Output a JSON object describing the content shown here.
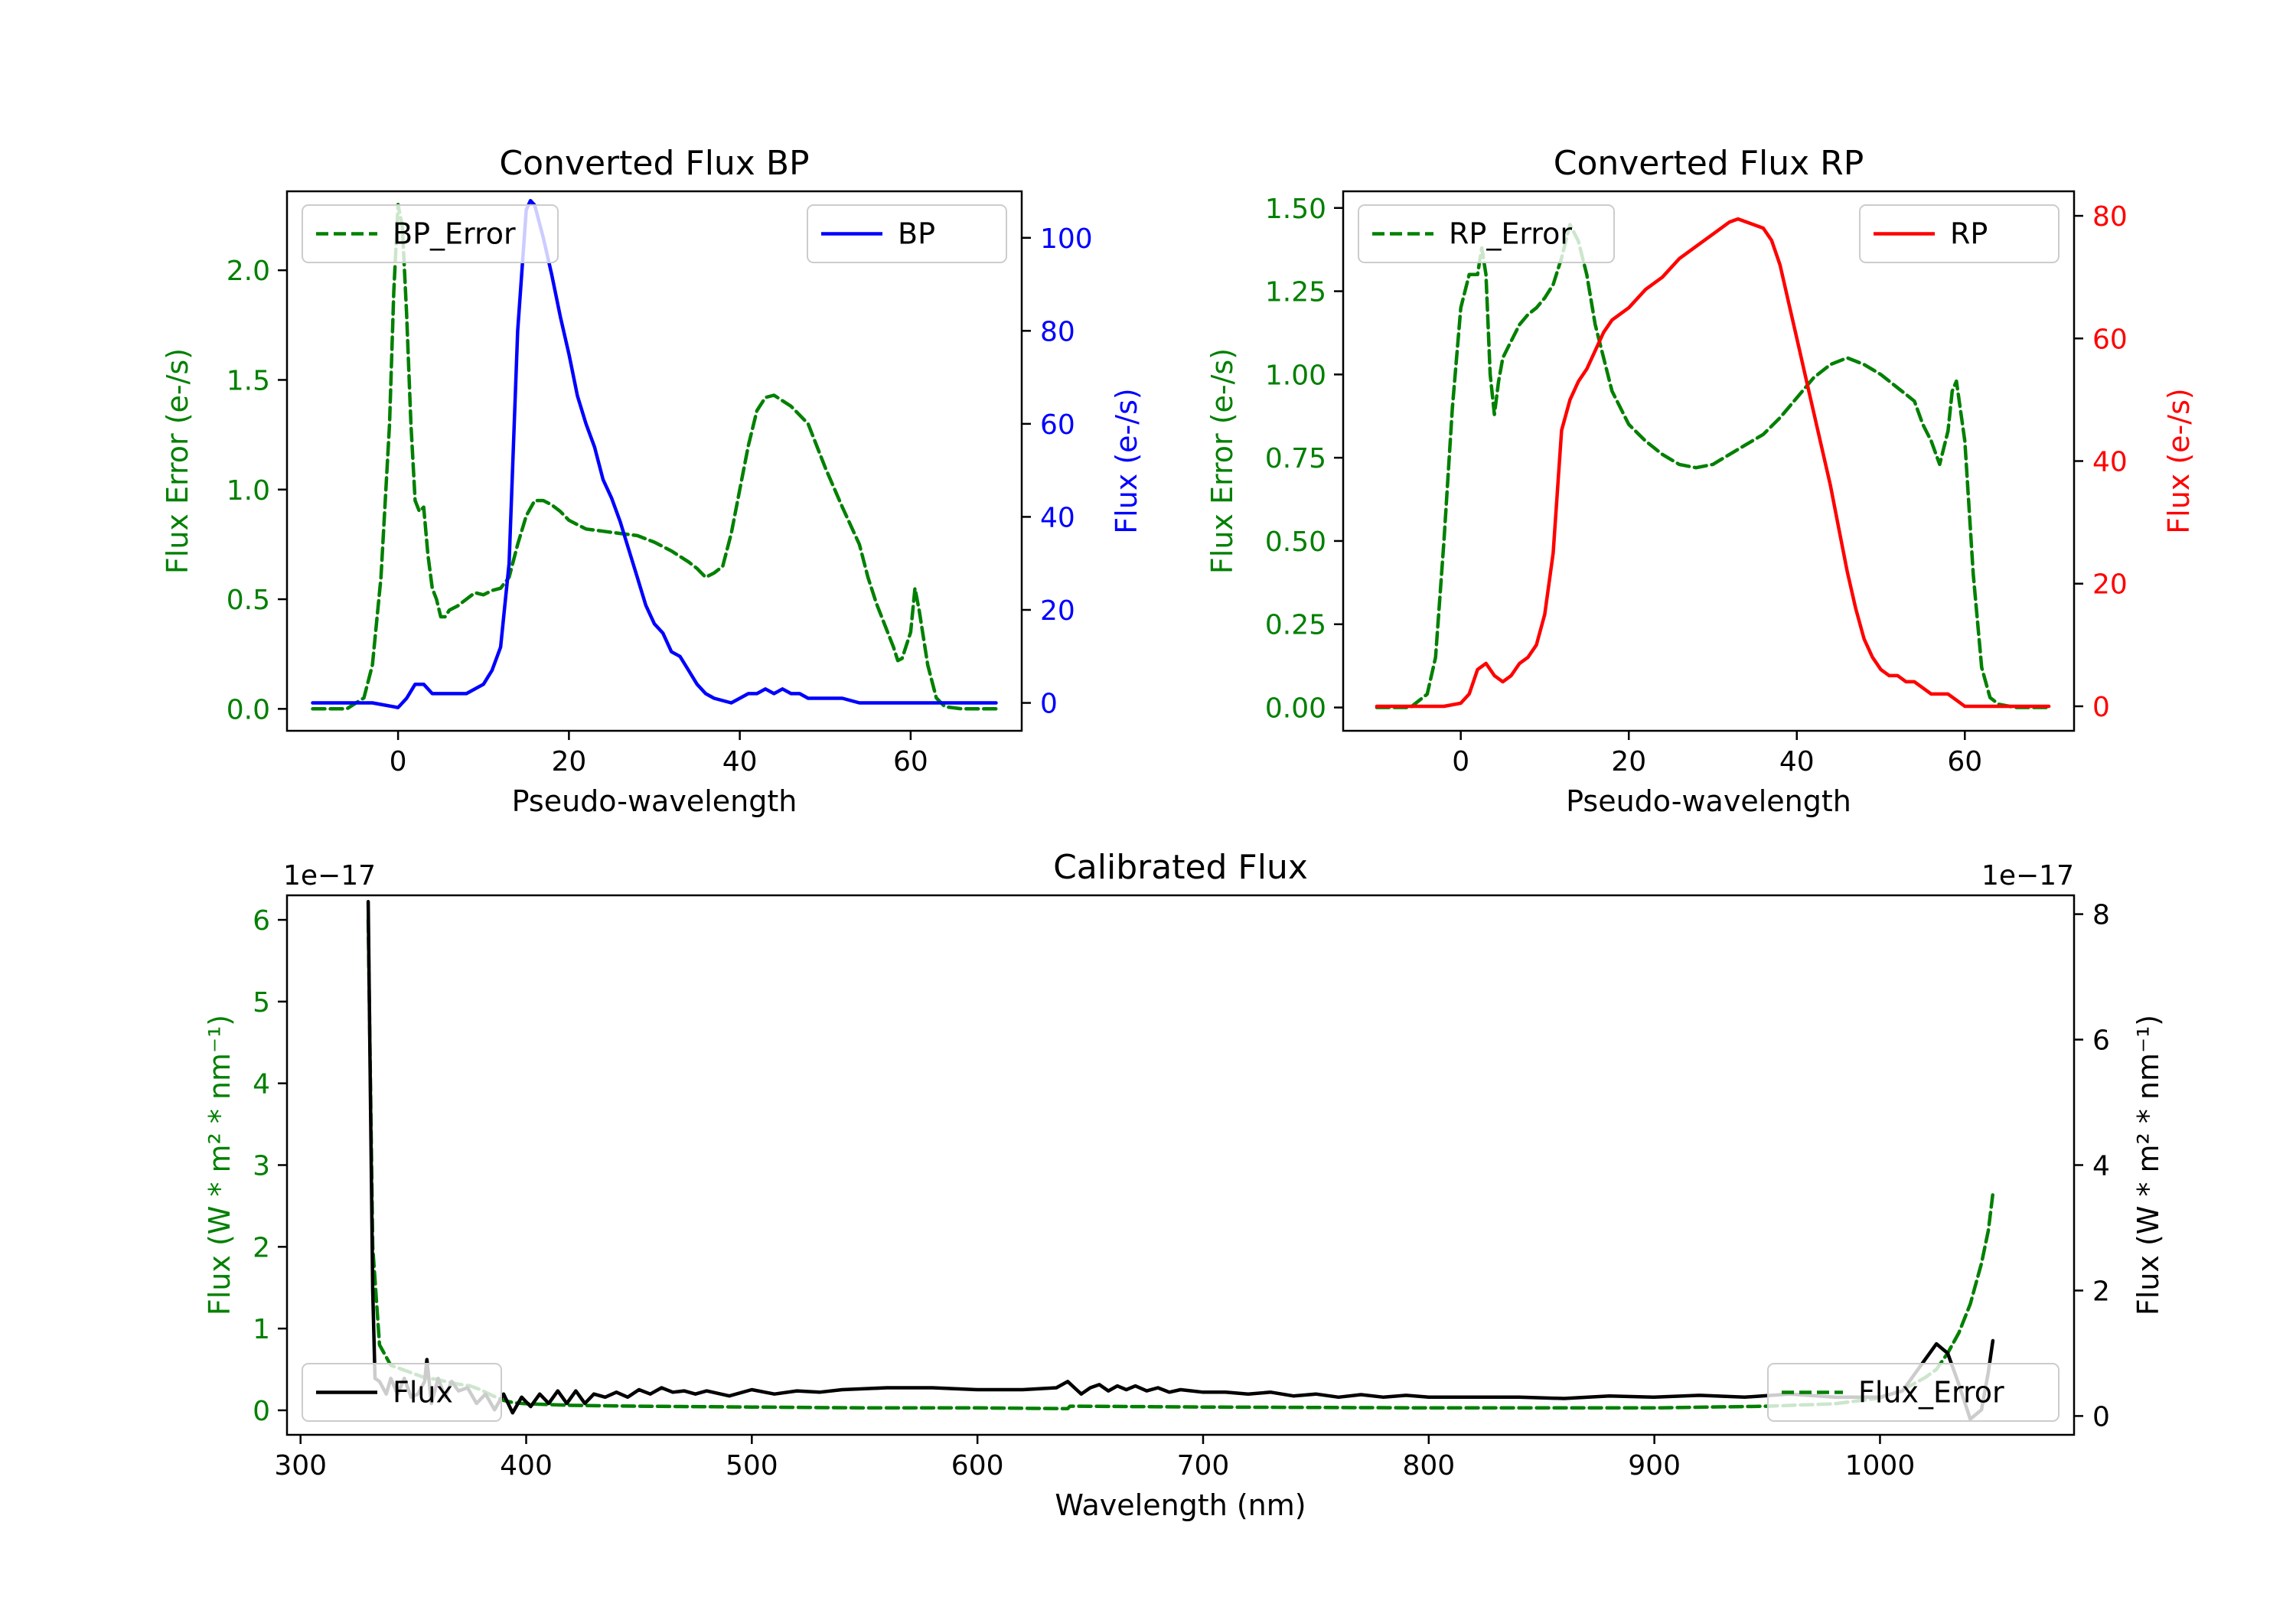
{
  "colors": {
    "bp": "#0000ff",
    "rp": "#ff0000",
    "error": "#008000",
    "flux": "#000000"
  },
  "chart_data": [
    {
      "id": "bp",
      "type": "line",
      "title": "Converted Flux BP",
      "xlabel": "Pseudo-wavelength",
      "ylabel_left": "Flux Error (e-/s)",
      "ylabel_right": "Flux (e-/s)",
      "xlim": [
        -13,
        73
      ],
      "ylim_left": [
        -0.1,
        2.36
      ],
      "ylim_right": [
        -6,
        110
      ],
      "xticks": [
        0,
        20,
        40,
        60
      ],
      "xtick_labels": [
        "0",
        "20",
        "40",
        "60"
      ],
      "yticks_left": [
        0,
        0.5,
        1.0,
        1.5,
        2.0
      ],
      "ytick_labels_left": [
        "0.0",
        "0.5",
        "1.0",
        "1.5",
        "2.0"
      ],
      "yticks_right": [
        0,
        20,
        40,
        60,
        80,
        100
      ],
      "ytick_labels_right": [
        "0",
        "20",
        "40",
        "60",
        "80",
        "100"
      ],
      "legend_left": "BP_Error",
      "legend_right": "BP",
      "series": [
        {
          "name": "BP_Error",
          "axis": "left",
          "style": "dashed",
          "color": "#008000",
          "x": [
            -10,
            -6,
            -4,
            -3,
            -2,
            -1,
            -0.5,
            0,
            0.5,
            1,
            1.5,
            2,
            2.5,
            3,
            3.5,
            4,
            4.5,
            5,
            5.5,
            6,
            7,
            8,
            9,
            10,
            11,
            12,
            13,
            14,
            15,
            16,
            17,
            18,
            19,
            20,
            22,
            24,
            26,
            28,
            30,
            32,
            34,
            35,
            36,
            37,
            38,
            39,
            40,
            41,
            42,
            43,
            44,
            46,
            48,
            50,
            52,
            54,
            55,
            56,
            57,
            58,
            58.5,
            59,
            60,
            60.5,
            61,
            62,
            63,
            64,
            66,
            68,
            70
          ],
          "y": [
            0,
            0,
            0.05,
            0.2,
            0.6,
            1.3,
            1.9,
            2.3,
            2.2,
            1.8,
            1.3,
            0.95,
            0.9,
            0.92,
            0.7,
            0.55,
            0.5,
            0.42,
            0.42,
            0.45,
            0.47,
            0.5,
            0.53,
            0.52,
            0.54,
            0.55,
            0.6,
            0.75,
            0.88,
            0.95,
            0.95,
            0.93,
            0.9,
            0.86,
            0.82,
            0.81,
            0.8,
            0.79,
            0.76,
            0.72,
            0.67,
            0.64,
            0.6,
            0.62,
            0.65,
            0.8,
            1.0,
            1.2,
            1.36,
            1.42,
            1.43,
            1.38,
            1.3,
            1.1,
            0.92,
            0.75,
            0.6,
            0.48,
            0.38,
            0.28,
            0.22,
            0.23,
            0.35,
            0.55,
            0.45,
            0.2,
            0.05,
            0.01,
            0,
            0,
            0
          ]
        },
        {
          "name": "BP",
          "axis": "right",
          "style": "solid",
          "color": "#0000ff",
          "x": [
            -10,
            -6,
            -3,
            0,
            1,
            2,
            3,
            4,
            5,
            6,
            8,
            10,
            11,
            12,
            13,
            14,
            15,
            15.5,
            16,
            17,
            18,
            19,
            20,
            21,
            22,
            23,
            24,
            25,
            26,
            27,
            28,
            29,
            30,
            31,
            32,
            33,
            34,
            35,
            36,
            37,
            38,
            39,
            40,
            41,
            42,
            43,
            44,
            45,
            46,
            47,
            48,
            50,
            52,
            54,
            56,
            58,
            60,
            62,
            65,
            70
          ],
          "y": [
            0,
            0,
            0,
            -1,
            1,
            4,
            4,
            2,
            2,
            2,
            2,
            4,
            7,
            12,
            30,
            80,
            106,
            108,
            107,
            100,
            92,
            83,
            75,
            66,
            60,
            55,
            48,
            44,
            39,
            33,
            27,
            21,
            17,
            15,
            11,
            10,
            7,
            4,
            2,
            1,
            0.5,
            0,
            1,
            2,
            2,
            3,
            2,
            3,
            2,
            2,
            1,
            1,
            1,
            0,
            0,
            0,
            0,
            0,
            0,
            0
          ]
        }
      ]
    },
    {
      "id": "rp",
      "type": "line",
      "title": "Converted Flux RP",
      "xlabel": "Pseudo-wavelength",
      "ylabel_left": "Flux Error (e-/s)",
      "ylabel_right": "Flux (e-/s)",
      "xlim": [
        -14,
        73
      ],
      "ylim_left": [
        -0.07,
        1.55
      ],
      "ylim_right": [
        -4,
        84
      ],
      "xticks": [
        0,
        20,
        40,
        60
      ],
      "xtick_labels": [
        "0",
        "20",
        "40",
        "60"
      ],
      "yticks_left": [
        0,
        0.25,
        0.5,
        0.75,
        1.0,
        1.25,
        1.5
      ],
      "ytick_labels_left": [
        "0.00",
        "0.25",
        "0.50",
        "0.75",
        "1.00",
        "1.25",
        "1.50"
      ],
      "yticks_right": [
        0,
        20,
        40,
        60,
        80
      ],
      "ytick_labels_right": [
        "0",
        "20",
        "40",
        "60",
        "80"
      ],
      "legend_left": "RP_Error",
      "legend_right": "RP",
      "series": [
        {
          "name": "RP_Error",
          "axis": "left",
          "style": "dashed",
          "color": "#008000",
          "x": [
            -10,
            -6,
            -4,
            -3,
            -2,
            -1,
            0,
            1,
            2,
            2.5,
            3,
            3.5,
            4,
            4.5,
            5,
            6,
            7,
            8,
            9,
            10,
            11,
            12,
            13,
            14,
            15,
            16,
            18,
            20,
            22,
            24,
            26,
            28,
            30,
            32,
            34,
            36,
            38,
            40,
            42,
            44,
            46,
            48,
            50,
            52,
            54,
            55,
            56,
            57,
            58,
            58.5,
            59,
            60,
            61,
            62,
            63,
            64,
            66,
            70
          ],
          "y": [
            0,
            0,
            0.04,
            0.15,
            0.5,
            0.9,
            1.2,
            1.3,
            1.3,
            1.38,
            1.3,
            1.0,
            0.88,
            0.98,
            1.05,
            1.1,
            1.15,
            1.18,
            1.2,
            1.23,
            1.27,
            1.35,
            1.45,
            1.4,
            1.3,
            1.15,
            0.95,
            0.85,
            0.8,
            0.76,
            0.73,
            0.72,
            0.73,
            0.76,
            0.79,
            0.82,
            0.87,
            0.93,
            0.99,
            1.03,
            1.05,
            1.03,
            1.0,
            0.96,
            0.92,
            0.85,
            0.8,
            0.73,
            0.83,
            0.95,
            0.98,
            0.8,
            0.4,
            0.12,
            0.03,
            0.01,
            0,
            0
          ]
        },
        {
          "name": "RP",
          "axis": "right",
          "style": "solid",
          "color": "#ff0000",
          "x": [
            -10,
            -6,
            -2,
            0,
            1,
            2,
            3,
            4,
            5,
            6,
            7,
            8,
            9,
            10,
            11,
            12,
            13,
            14,
            15,
            16,
            17,
            18,
            20,
            22,
            24,
            26,
            28,
            30,
            32,
            33,
            34,
            35,
            36,
            37,
            38,
            39,
            40,
            41,
            42,
            43,
            44,
            45,
            46,
            47,
            48,
            49,
            50,
            51,
            52,
            53,
            54,
            55,
            56,
            57,
            58,
            59,
            60,
            62,
            65,
            70
          ],
          "y": [
            0,
            0,
            0,
            0.5,
            2,
            6,
            7,
            5,
            4,
            5,
            7,
            8,
            10,
            15,
            25,
            45,
            50,
            53,
            55,
            58,
            61,
            63,
            65,
            68,
            70,
            73,
            75,
            77,
            79,
            79.5,
            79,
            78.5,
            78,
            76,
            72,
            66,
            60,
            54,
            48,
            42,
            36,
            29,
            22,
            16,
            11,
            8,
            6,
            5,
            5,
            4,
            4,
            3,
            2,
            2,
            2,
            1,
            0,
            0,
            0,
            0
          ]
        }
      ]
    },
    {
      "id": "calibrated",
      "type": "line",
      "title": "Calibrated Flux",
      "xlabel": "Wavelength (nm)",
      "ylabel_left": "Flux (W * m² * nm⁻¹)",
      "ylabel_right": "Flux (W * m² * nm⁻¹)",
      "offset_left": "1e−17",
      "offset_right": "1e−17",
      "xlim": [
        294,
        1086
      ],
      "ylim_left": [
        -0.3,
        6.3
      ],
      "ylim_right": [
        -0.3,
        8.3
      ],
      "xticks": [
        300,
        400,
        500,
        600,
        700,
        800,
        900,
        1000
      ],
      "xtick_labels": [
        "300",
        "400",
        "500",
        "600",
        "700",
        "800",
        "900",
        "1000"
      ],
      "yticks_left": [
        0,
        1,
        2,
        3,
        4,
        5,
        6
      ],
      "ytick_labels_left": [
        "0",
        "1",
        "2",
        "3",
        "4",
        "5",
        "6"
      ],
      "yticks_right": [
        0,
        2,
        4,
        6,
        8
      ],
      "ytick_labels_right": [
        "0",
        "2",
        "4",
        "6",
        "8"
      ],
      "legend_left": "Flux",
      "legend_right": "Flux_Error",
      "series": [
        {
          "name": "Flux_Error",
          "axis": "left",
          "style": "dashed",
          "color": "#008000",
          "x": [
            330,
            332,
            335,
            340,
            345,
            350,
            355,
            360,
            365,
            370,
            375,
            380,
            385,
            390,
            395,
            400,
            410,
            420,
            450,
            500,
            550,
            600,
            640,
            641,
            645,
            700,
            800,
            900,
            950,
            980,
            1000,
            1010,
            1020,
            1025,
            1030,
            1035,
            1040,
            1045,
            1048,
            1050
          ],
          "y": [
            6.0,
            2.0,
            0.8,
            0.55,
            0.5,
            0.45,
            0.4,
            0.38,
            0.35,
            0.32,
            0.3,
            0.25,
            0.18,
            0.12,
            0.09,
            0.08,
            0.07,
            0.06,
            0.05,
            0.04,
            0.03,
            0.03,
            0.02,
            0.05,
            0.05,
            0.04,
            0.03,
            0.03,
            0.05,
            0.08,
            0.15,
            0.25,
            0.4,
            0.5,
            0.7,
            0.95,
            1.3,
            1.8,
            2.2,
            2.65
          ]
        },
        {
          "name": "Flux",
          "axis": "right",
          "style": "solid",
          "color": "#000000",
          "x": [
            330,
            331,
            332,
            333,
            335,
            338,
            340,
            343,
            346,
            349,
            352,
            355,
            356,
            358,
            361,
            364,
            367,
            370,
            374,
            378,
            382,
            386,
            390,
            394,
            398,
            402,
            406,
            410,
            414,
            418,
            422,
            426,
            430,
            435,
            440,
            445,
            450,
            455,
            460,
            465,
            470,
            475,
            480,
            490,
            500,
            510,
            520,
            530,
            540,
            560,
            580,
            600,
            620,
            635,
            640,
            643,
            646,
            650,
            654,
            658,
            662,
            666,
            670,
            675,
            680,
            685,
            690,
            695,
            700,
            710,
            720,
            730,
            740,
            750,
            760,
            770,
            780,
            790,
            800,
            820,
            840,
            860,
            880,
            900,
            920,
            940,
            960,
            980,
            1000,
            1010,
            1020,
            1025,
            1030,
            1035,
            1040,
            1045,
            1048,
            1050
          ],
          "y": [
            8.2,
            5.0,
            2.0,
            0.6,
            0.55,
            0.35,
            0.6,
            0.35,
            0.6,
            0.3,
            0.35,
            0.55,
            0.9,
            0.2,
            0.6,
            0.3,
            0.55,
            0.4,
            0.45,
            0.2,
            0.35,
            0.1,
            0.35,
            0.05,
            0.3,
            0.15,
            0.35,
            0.2,
            0.4,
            0.2,
            0.4,
            0.2,
            0.35,
            0.3,
            0.38,
            0.3,
            0.42,
            0.35,
            0.45,
            0.38,
            0.4,
            0.35,
            0.4,
            0.32,
            0.42,
            0.35,
            0.4,
            0.38,
            0.42,
            0.45,
            0.45,
            0.42,
            0.42,
            0.45,
            0.55,
            0.45,
            0.35,
            0.45,
            0.5,
            0.4,
            0.48,
            0.42,
            0.48,
            0.4,
            0.45,
            0.38,
            0.42,
            0.4,
            0.38,
            0.38,
            0.35,
            0.38,
            0.32,
            0.35,
            0.3,
            0.34,
            0.3,
            0.33,
            0.3,
            0.3,
            0.3,
            0.28,
            0.32,
            0.3,
            0.33,
            0.3,
            0.35,
            0.3,
            0.3,
            0.4,
            0.9,
            1.15,
            1.0,
            0.5,
            -0.05,
            0.1,
            0.7,
            1.2
          ]
        }
      ]
    }
  ]
}
